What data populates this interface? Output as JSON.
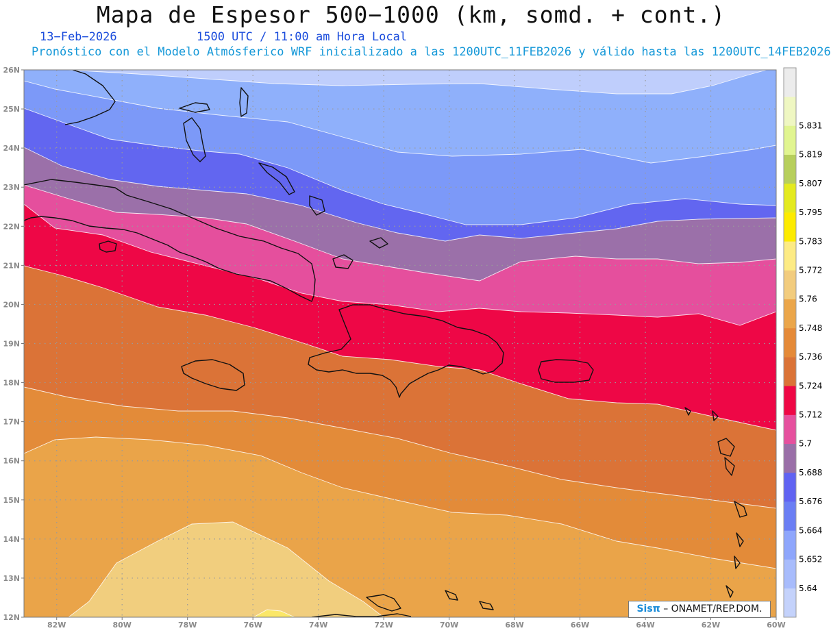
{
  "header": {
    "title": "Mapa de Espesor 500−1000 (km, somd. + cont.)",
    "date": "13−Feb−2026",
    "utc": "1500 UTC / 11:00 am Hora Local",
    "subtitle": "Pronóstico con el Modelo Atmósferico WRF inicializado a las 1200UTC_11FEB2026 y válido hasta las  1200UTC_14FEB2026"
  },
  "map": {
    "region": "Caribbean",
    "lat_range": [
      12,
      26
    ],
    "lon_range": [
      -83,
      -60
    ],
    "lat_labels": [
      "26N",
      "25N",
      "24N",
      "23N",
      "22N",
      "21N",
      "20N",
      "19N",
      "18N",
      "17N",
      "16N",
      "15N",
      "14N",
      "13N",
      "12N"
    ],
    "lon_labels": [
      "82W",
      "80W",
      "78W",
      "76W",
      "74W",
      "72W",
      "70W",
      "68W",
      "66W",
      "64W",
      "62W",
      "60W"
    ]
  },
  "colorbar": {
    "levels": [
      "5.64",
      "5.652",
      "5.664",
      "5.676",
      "5.688",
      "5.7",
      "5.712",
      "5.724",
      "5.736",
      "5.748",
      "5.76",
      "5.772",
      "5.783",
      "5.795",
      "5.807",
      "5.819",
      "5.831"
    ],
    "colors": [
      "#c4d2fb",
      "#a8bcfc",
      "#8ea6fc",
      "#6a7ef4",
      "#6063f2",
      "#9a6fa8",
      "#e6509e",
      "#ef0745",
      "#db7337",
      "#e58a38",
      "#eba64a",
      "#f2cc7e",
      "#fdeb84",
      "#fdeb00",
      "#e4ea1f",
      "#b7cf5c",
      "#e1f590",
      "#eff7c2",
      "#ececec"
    ]
  },
  "bands": [
    {
      "color": "#bfcefc"
    },
    {
      "color": "#8fb0fb"
    },
    {
      "color": "#7c99f8"
    },
    {
      "color": "#6266f0"
    },
    {
      "color": "#9b70a9"
    },
    {
      "color": "#e54f9d"
    },
    {
      "color": "#ee0746"
    },
    {
      "color": "#db7337"
    },
    {
      "color": "#e38b39"
    },
    {
      "color": "#eaa449"
    },
    {
      "color": "#f1ce7e"
    },
    {
      "color": "#fbe768"
    }
  ],
  "credit": {
    "logo": "Sisπ",
    "text": " – ONAMET/REP.DOM."
  }
}
